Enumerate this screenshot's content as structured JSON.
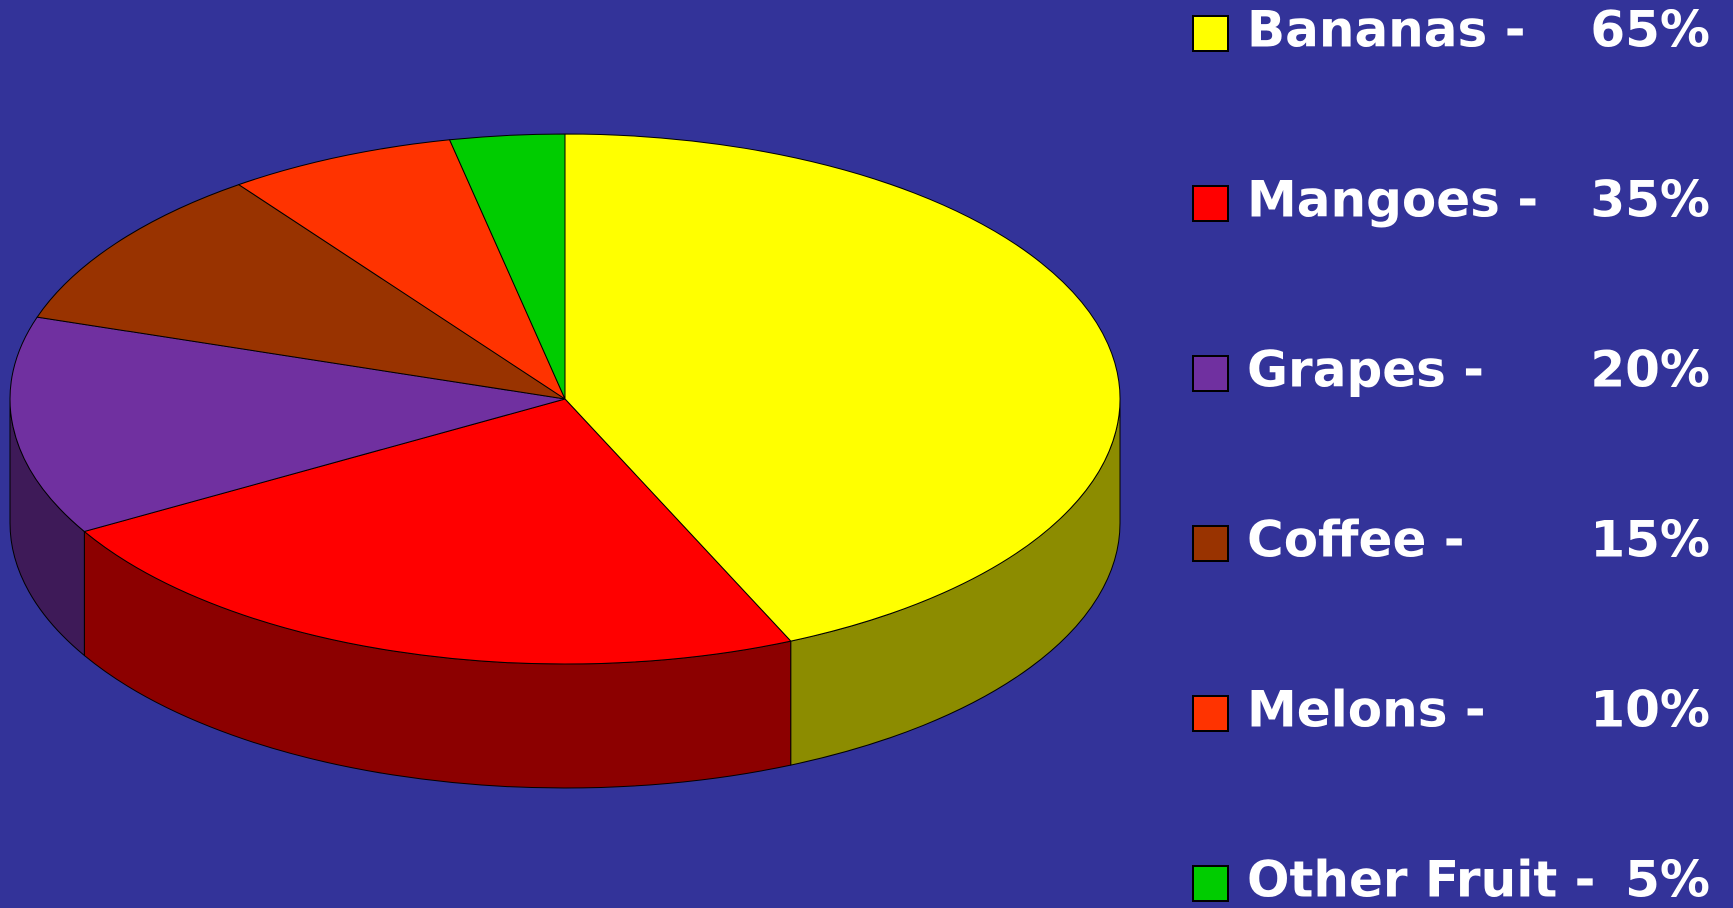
{
  "chart_data": {
    "type": "pie3d",
    "categories": [
      "Bananas -",
      "Mangoes -",
      "Grapes -",
      "Coffee -",
      "Melons -",
      "Other Fruit -"
    ],
    "values": [
      65,
      35,
      20,
      15,
      10,
      5
    ],
    "value_labels": [
      "65%",
      "35%",
      "20%",
      "15%",
      "10%",
      "5%"
    ],
    "colors": [
      "#ffff00",
      "#ff0000",
      "#7030a0",
      "#993300",
      "#ff3300",
      "#00cc00"
    ],
    "legend": "right"
  }
}
